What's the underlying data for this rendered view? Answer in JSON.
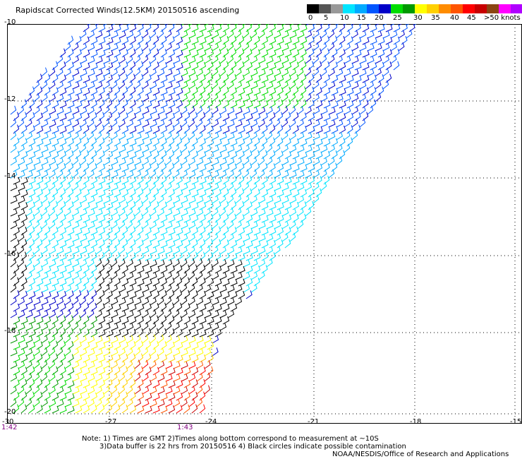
{
  "title": "Rapidscat Corrected Winds(12.5KM) 20150516 ascending",
  "colorbar": {
    "unit_label": ">50 knots",
    "tick_labels": [
      "0",
      "5",
      "10",
      "15",
      "20",
      "25",
      "30",
      "35",
      "40",
      "45"
    ],
    "colors": [
      "#000000",
      "#555555",
      "#999999",
      "#00e5ff",
      "#00aaff",
      "#0055ff",
      "#0000c8",
      "#00dd00",
      "#009900",
      "#ffff00",
      "#ffd000",
      "#ff8c00",
      "#ff5500",
      "#ff0000",
      "#c80000",
      "#8b4513",
      "#ff00ff",
      "#b000ff",
      "#7000d0",
      "#000080"
    ]
  },
  "axes": {
    "lat_labels": [
      "-10",
      "-12",
      "-14",
      "-16",
      "-18",
      "-20"
    ],
    "lon_labels": [
      "-30",
      "-27",
      "-24",
      "-21",
      "-18",
      "-15"
    ]
  },
  "pass_times": [
    "1:42",
    "1:43"
  ],
  "notes": [
    "Note: 1) Times are GMT 2)Times along bottom correspond to measurement at ~10S",
    "3)Data buffer is 22 hrs from 20150516 4) Black circles indicate possible contamination",
    "NOAA/NESDIS/Office of Research and Applications"
  ]
}
